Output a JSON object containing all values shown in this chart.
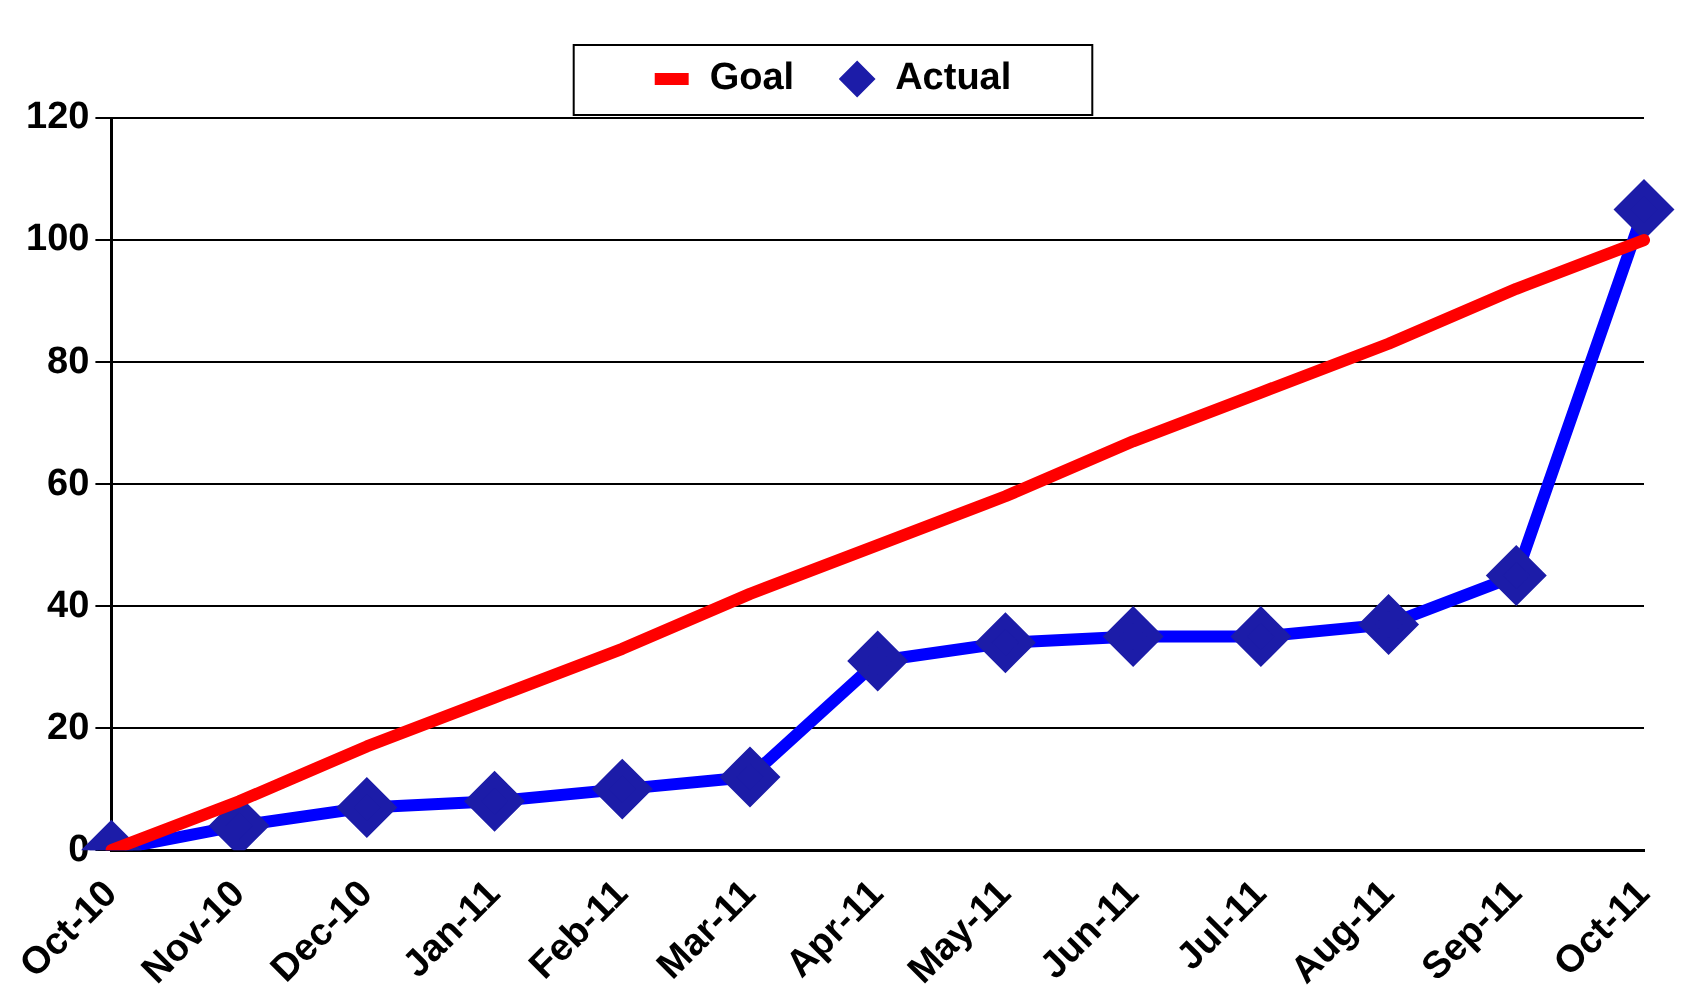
{
  "chart_data": {
    "type": "line",
    "categories": [
      "Oct-10",
      "Nov-10",
      "Dec-10",
      "Jan-11",
      "Feb-11",
      "Mar-11",
      "Apr-11",
      "May-11",
      "Jun-11",
      "Jul-11",
      "Aug-11",
      "Sep-11",
      "Oct-11"
    ],
    "series": [
      {
        "name": "Goal",
        "color": "#ff0000",
        "marker": "none",
        "values": [
          0,
          8,
          17,
          25,
          33,
          42,
          50,
          58,
          67,
          75,
          83,
          92,
          100
        ]
      },
      {
        "name": "Actual",
        "color": "#0000ff",
        "marker": "diamond",
        "values": [
          0,
          4,
          7,
          8,
          10,
          12,
          31,
          34,
          35,
          35,
          37,
          45,
          105
        ]
      }
    ],
    "ylim": [
      0,
      120
    ],
    "yticks": [
      0,
      20,
      40,
      60,
      80,
      100,
      120
    ],
    "grid": "y",
    "legend": "top"
  }
}
